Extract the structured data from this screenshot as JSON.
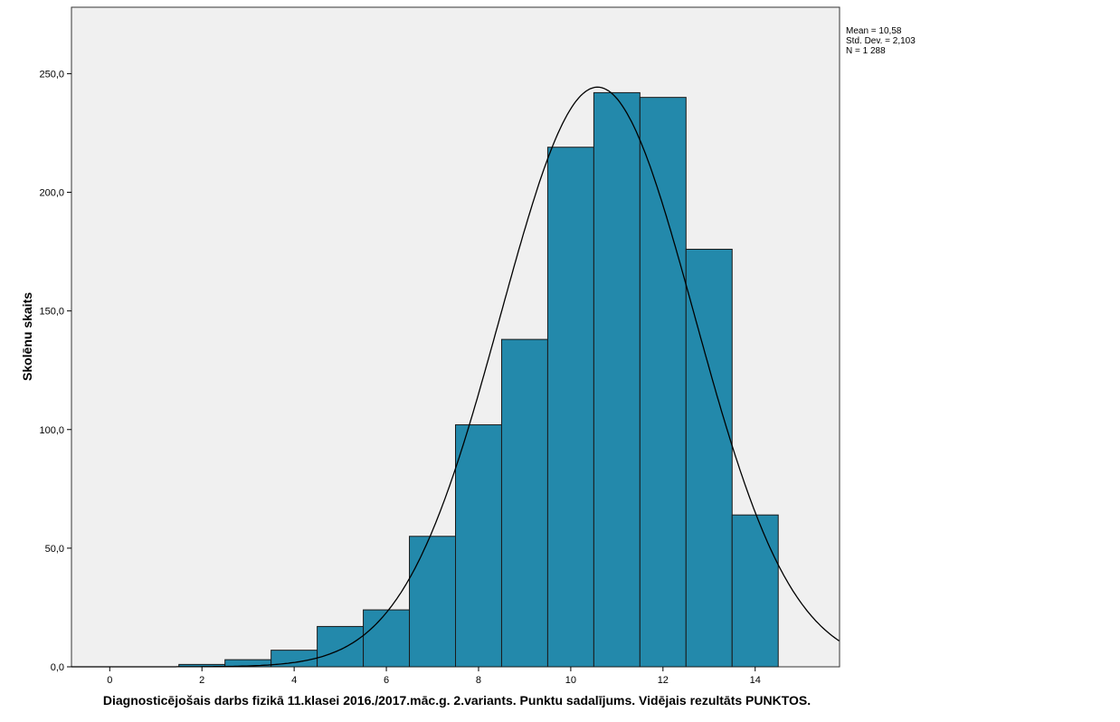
{
  "chart_data": {
    "type": "bar",
    "subtype": "histogram",
    "xlabel": "Diagnosticējošais darbs fizikā 11.klasei 2016./2017.māc.g. 2.variants. Punktu sadalījums. Vidējais rezultāts PUNKTOS.",
    "ylabel": "Skolēnu skaits",
    "x_ticks": [
      "0",
      "2",
      "4",
      "6",
      "8",
      "10",
      "12",
      "14"
    ],
    "y_ticks": [
      "0,0",
      "50,0",
      "100,0",
      "150,0",
      "200,0",
      "250,0"
    ],
    "xlim": [
      -0.83,
      15.83
    ],
    "ylim": [
      0,
      278
    ],
    "bin_width": 1,
    "bins": [
      0,
      1,
      2,
      3,
      4,
      5,
      6,
      7,
      8,
      9,
      10,
      11,
      12,
      13,
      14
    ],
    "values": [
      0,
      0,
      1,
      3,
      7,
      17,
      24,
      55,
      102,
      138,
      219,
      242,
      240,
      176,
      64
    ],
    "normal_curve": {
      "mean": 10.58,
      "std": 2.103,
      "n": 1288
    },
    "stats": {
      "mean": "Mean = 10,58",
      "std": "Std. Dev. = 2,103",
      "n": "N = 1 288"
    },
    "grid": false,
    "colors": {
      "bar_fill": "#2389ab",
      "bar_stroke": "#1a1a1a",
      "plot_bg": "#f0f0f0",
      "curve": "#000000"
    }
  }
}
